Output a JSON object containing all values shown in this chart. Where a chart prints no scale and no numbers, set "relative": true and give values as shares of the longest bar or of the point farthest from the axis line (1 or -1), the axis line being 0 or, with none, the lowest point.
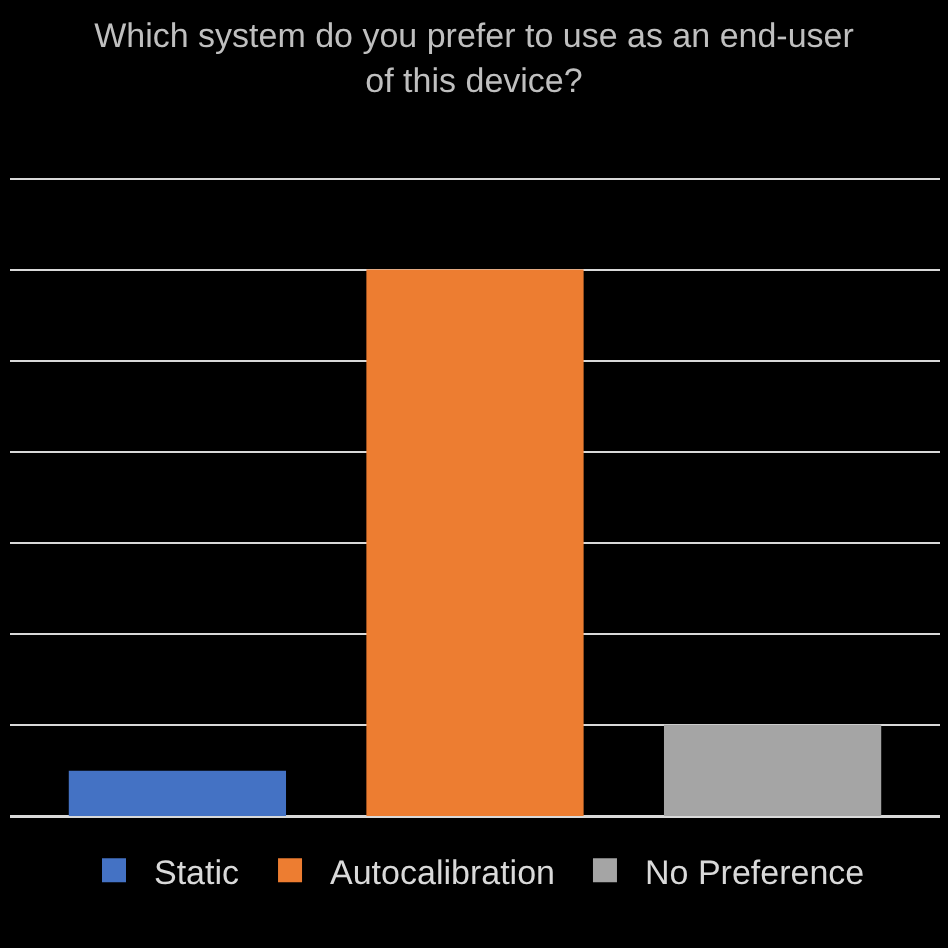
{
  "chart_data": {
    "type": "bar",
    "title": "Which system do you prefer to use as an end-user of this device?",
    "relative": true,
    "categories": [
      null
    ],
    "series": [
      {
        "name": "Static",
        "color": "#4472c4",
        "values": [
          0.083
        ]
      },
      {
        "name": "Autocalibration",
        "color": "#ed7d31",
        "values": [
          1
        ]
      },
      {
        "name": "No Preference",
        "color": "#a5a5a5",
        "values": [
          0.167
        ]
      }
    ],
    "grid": "y",
    "legend": "bottom"
  }
}
